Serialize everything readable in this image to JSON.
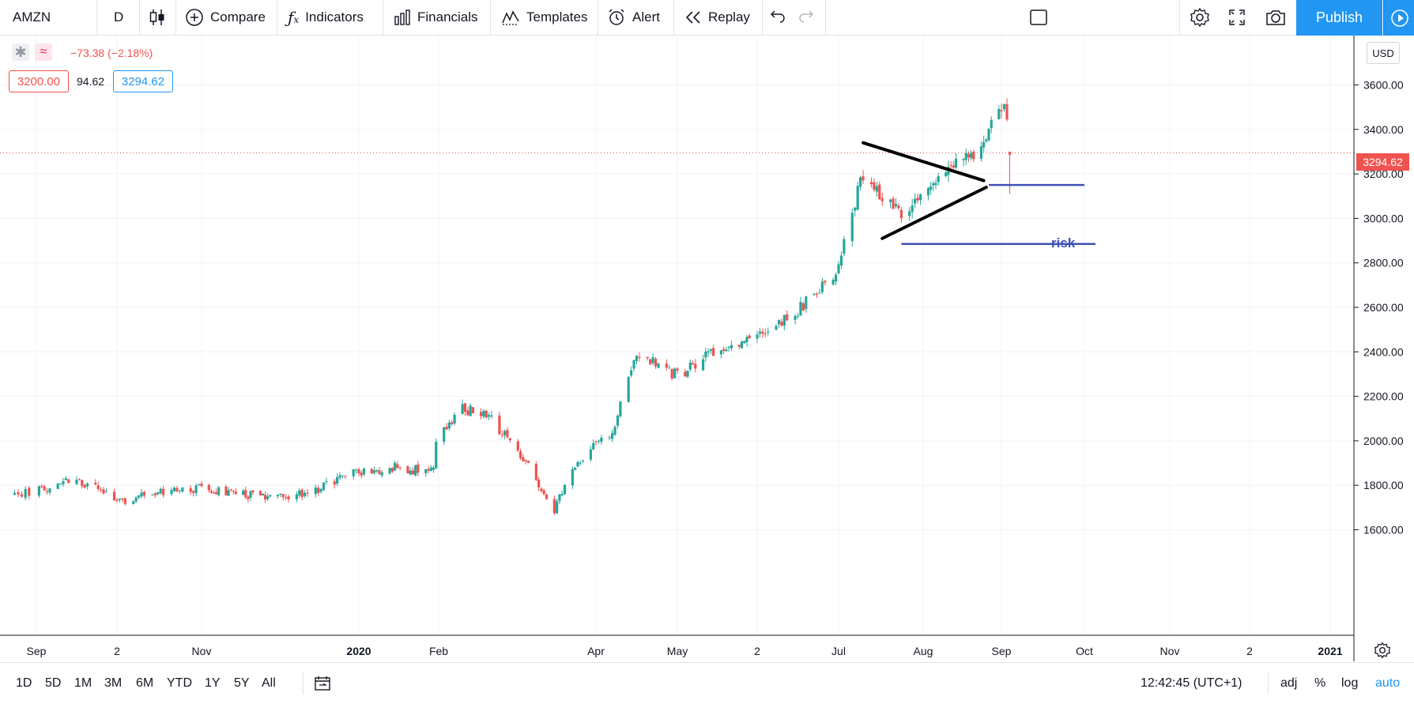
{
  "toolbar": {
    "symbol": "AMZN",
    "interval": "D",
    "compare": "Compare",
    "indicators": "Indicators",
    "financials": "Financials",
    "templates": "Templates",
    "alert": "Alert",
    "replay": "Replay",
    "publish": "Publish"
  },
  "legend": {
    "change": "−73.38 (−2.18%)",
    "bid": "3200.00",
    "spread": "94.62",
    "ask": "3294.62"
  },
  "currency": "USD",
  "last_price_label": "3294.62",
  "annotation_text": "risk",
  "bottom": {
    "ranges": [
      "1D",
      "5D",
      "1M",
      "3M",
      "6M",
      "YTD",
      "1Y",
      "5Y",
      "All"
    ],
    "clock": "12:42:45 (UTC+1)",
    "adj": "adj",
    "percent": "%",
    "log": "log",
    "auto": "auto"
  },
  "colors": {
    "up": "#26a69a",
    "down": "#ef5350",
    "accent": "#2196f3",
    "annotation": "#3f51b5"
  },
  "chart_data": {
    "type": "candlestick",
    "symbol": "AMZN",
    "interval": "1D",
    "ylim": [
      1430,
      3800
    ],
    "y_ticks": [
      "1600.00",
      "1800.00",
      "2000.00",
      "2200.00",
      "2400.00",
      "2600.00",
      "2800.00",
      "3000.00",
      "3200.00",
      "3400.00",
      "3600.00"
    ],
    "x_ticks": [
      "Sep",
      "2",
      "Nov",
      "2020",
      "Feb",
      "Apr",
      "May",
      "2",
      "Jul",
      "Aug",
      "Sep",
      "Oct",
      "Nov",
      "2",
      "2021"
    ],
    "last_price": 3294.62,
    "close_path": [
      {
        "date": "2019-08-26",
        "close": 1760
      },
      {
        "date": "2019-09-16",
        "close": 1830
      },
      {
        "date": "2019-10-01",
        "close": 1730
      },
      {
        "date": "2019-10-15",
        "close": 1760
      },
      {
        "date": "2019-11-01",
        "close": 1790
      },
      {
        "date": "2019-11-15",
        "close": 1760
      },
      {
        "date": "2019-12-02",
        "close": 1740
      },
      {
        "date": "2019-12-16",
        "close": 1780
      },
      {
        "date": "2019-12-31",
        "close": 1860
      },
      {
        "date": "2020-01-15",
        "close": 1880
      },
      {
        "date": "2020-01-30",
        "close": 1860
      },
      {
        "date": "2020-01-31",
        "close": 2010
      },
      {
        "date": "2020-02-10",
        "close": 2150
      },
      {
        "date": "2020-02-21",
        "close": 2100
      },
      {
        "date": "2020-03-05",
        "close": 1900
      },
      {
        "date": "2020-03-16",
        "close": 1690
      },
      {
        "date": "2020-03-24",
        "close": 1900
      },
      {
        "date": "2020-04-07",
        "close": 2040
      },
      {
        "date": "2020-04-16",
        "close": 2400
      },
      {
        "date": "2020-05-01",
        "close": 2290
      },
      {
        "date": "2020-05-15",
        "close": 2410
      },
      {
        "date": "2020-06-01",
        "close": 2470
      },
      {
        "date": "2020-06-15",
        "close": 2580
      },
      {
        "date": "2020-06-30",
        "close": 2760
      },
      {
        "date": "2020-07-10",
        "close": 3200
      },
      {
        "date": "2020-07-24",
        "close": 3010
      },
      {
        "date": "2020-08-07",
        "close": 3170
      },
      {
        "date": "2020-08-21",
        "close": 3290
      },
      {
        "date": "2020-09-02",
        "close": 3520
      },
      {
        "date": "2020-09-04",
        "close": 3294.62
      }
    ],
    "drawings": [
      {
        "type": "trendline",
        "from": {
          "date": "2020-07-10",
          "price": 3340
        },
        "to": {
          "date": "2020-08-25",
          "price": 3170
        }
      },
      {
        "type": "trendline",
        "from": {
          "date": "2020-07-17",
          "price": 2910
        },
        "to": {
          "date": "2020-08-26",
          "price": 3140
        }
      },
      {
        "type": "horizontal",
        "price": 3150,
        "from_date": "2020-08-27",
        "to_date": "2020-10-01"
      },
      {
        "type": "horizontal",
        "price": 2885,
        "from_date": "2020-07-24",
        "to_date": "2020-10-05"
      }
    ]
  }
}
